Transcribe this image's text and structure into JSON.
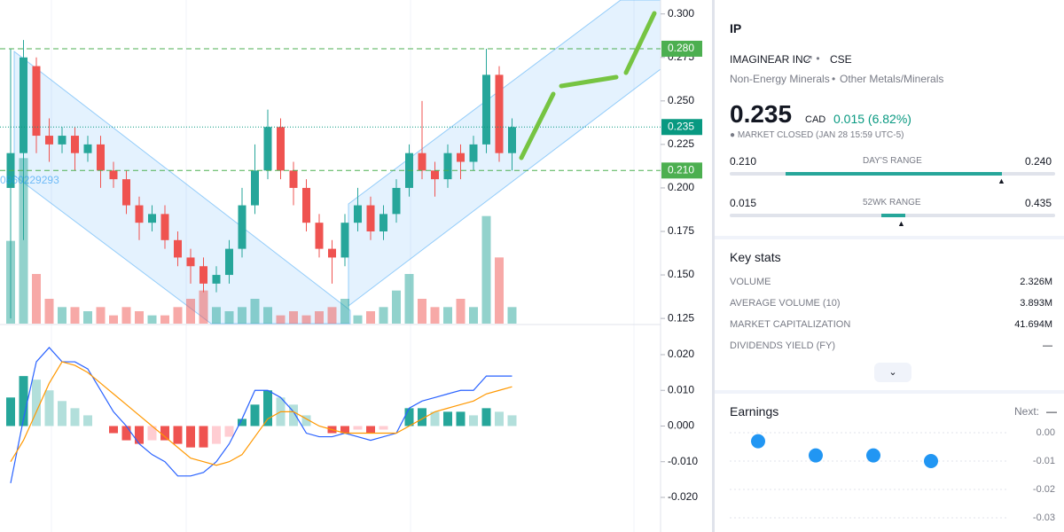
{
  "chart_data": [
    {
      "type": "candlestick",
      "open": [
        0.2,
        0.22,
        0.27,
        0.23,
        0.225,
        0.23,
        0.22,
        0.225,
        0.21,
        0.205,
        0.19,
        0.18,
        0.185,
        0.17,
        0.16,
        0.155,
        0.145,
        0.15,
        0.165,
        0.19,
        0.21,
        0.235,
        0.21,
        0.2,
        0.18,
        0.165,
        0.16,
        0.18,
        0.19,
        0.175,
        0.185,
        0.2,
        0.22,
        0.21,
        0.205,
        0.22,
        0.215,
        0.225,
        0.265,
        0.22
      ],
      "high": [
        0.28,
        0.285,
        0.275,
        0.24,
        0.235,
        0.235,
        0.23,
        0.23,
        0.215,
        0.21,
        0.195,
        0.19,
        0.19,
        0.175,
        0.165,
        0.16,
        0.155,
        0.17,
        0.2,
        0.225,
        0.245,
        0.24,
        0.215,
        0.205,
        0.185,
        0.17,
        0.185,
        0.2,
        0.195,
        0.19,
        0.205,
        0.225,
        0.25,
        0.215,
        0.225,
        0.225,
        0.23,
        0.28,
        0.27,
        0.24
      ],
      "low": [
        0.125,
        0.17,
        0.22,
        0.215,
        0.22,
        0.21,
        0.215,
        0.2,
        0.2,
        0.185,
        0.17,
        0.175,
        0.165,
        0.155,
        0.145,
        0.14,
        0.14,
        0.145,
        0.16,
        0.185,
        0.205,
        0.205,
        0.19,
        0.175,
        0.16,
        0.145,
        0.155,
        0.175,
        0.17,
        0.17,
        0.18,
        0.195,
        0.205,
        0.195,
        0.2,
        0.205,
        0.21,
        0.22,
        0.215,
        0.21
      ],
      "close": [
        0.22,
        0.275,
        0.23,
        0.225,
        0.23,
        0.22,
        0.225,
        0.21,
        0.205,
        0.19,
        0.18,
        0.185,
        0.17,
        0.16,
        0.155,
        0.145,
        0.15,
        0.165,
        0.19,
        0.21,
        0.235,
        0.21,
        0.2,
        0.18,
        0.165,
        0.16,
        0.18,
        0.19,
        0.175,
        0.185,
        0.2,
        0.22,
        0.21,
        0.205,
        0.22,
        0.215,
        0.225,
        0.265,
        0.22,
        0.235
      ],
      "volume": [
        10,
        20,
        6,
        3,
        2,
        2,
        1.5,
        2,
        1,
        2,
        1.5,
        1,
        1,
        2,
        3,
        4,
        2,
        1.5,
        2,
        3,
        2,
        1,
        1.5,
        1,
        1.5,
        2,
        3,
        1,
        1.5,
        2,
        4,
        6,
        3,
        2,
        2,
        3,
        2,
        13,
        8,
        2
      ],
      "volume_ylim": [
        0,
        30
      ],
      "up_color": "#26a69a",
      "down_color": "#ef5350",
      "ylim": [
        0.122,
        0.308
      ],
      "yticks": [
        {
          "value": 0.3,
          "label": "0.300"
        },
        0.275,
        {
          "value": 0.25,
          "label": "0.250"
        },
        0.225,
        {
          "value": 0.2,
          "label": "0.200"
        },
        0.175,
        {
          "value": 0.15,
          "label": "0.150"
        },
        0.125
      ],
      "price_lines": [
        {
          "value": 0.28,
          "label": "0.280",
          "color": "#4caf50",
          "line_style": "dashed"
        },
        {
          "value": 0.235,
          "label": "0.235",
          "color": "#089981",
          "line_style": "dotted"
        },
        {
          "value": 0.21,
          "label": "0.210",
          "color": "#4caf50",
          "line_style": "dashed"
        }
      ],
      "annotation": "0860229293"
    },
    {
      "type": "macd",
      "histogram": [
        0.008,
        0.014,
        0.013,
        0.01,
        0.007,
        0.005,
        0.003,
        0,
        -0.002,
        -0.004,
        -0.005,
        -0.004,
        -0.004,
        -0.005,
        -0.006,
        -0.006,
        -0.005,
        -0.003,
        0.002,
        0.006,
        0.01,
        0.008,
        0.006,
        0.003,
        0,
        -0.002,
        -0.002,
        -0.001,
        -0.002,
        -0.001,
        0,
        0.005,
        0.005,
        0.004,
        0.004,
        0.004,
        0.003,
        0.005,
        0.004,
        0.003
      ],
      "series": [
        {
          "color": "#2962ff",
          "values": [
            -0.016,
            0.002,
            0.018,
            0.022,
            0.018,
            0.018,
            0.016,
            0.01,
            0.004,
            0,
            -0.005,
            -0.008,
            -0.01,
            -0.014,
            -0.014,
            -0.013,
            -0.01,
            -0.005,
            0.002,
            0.01,
            0.01,
            0.008,
            0.004,
            -0.002,
            -0.003,
            -0.003,
            -0.002,
            -0.003,
            -0.004,
            -0.003,
            -0.002,
            0.005,
            0.007,
            0.008,
            0.009,
            0.01,
            0.01,
            0.014,
            0.014,
            0.014
          ]
        },
        {
          "color": "#ff9800",
          "values": [
            -0.01,
            -0.004,
            0.004,
            0.012,
            0.018,
            0.017,
            0.015,
            0.012,
            0.009,
            0.006,
            0.003,
            0,
            -0.003,
            -0.006,
            -0.009,
            -0.01,
            -0.011,
            -0.01,
            -0.008,
            -0.003,
            0.002,
            0.004,
            0.004,
            0.002,
            0,
            -0.001,
            -0.002,
            -0.002,
            -0.002,
            -0.002,
            -0.002,
            0,
            0.002,
            0.004,
            0.005,
            0.006,
            0.007,
            0.009,
            0.01,
            0.011
          ]
        }
      ],
      "ylim": [
        -0.0297,
        0.0282
      ],
      "yticks": [
        {
          "value": 0.02,
          "label": "0.020"
        },
        {
          "value": 0.01,
          "label": "0.010"
        },
        {
          "value": 0,
          "label": "0.000"
        },
        {
          "value": -0.01,
          "label": "-0.010"
        },
        {
          "value": -0.02,
          "label": "-0.020"
        }
      ]
    },
    {
      "type": "scatter",
      "title": "Earnings",
      "next_label": "Next:",
      "next_value": "—",
      "values": [
        -0.003,
        -0.008,
        -0.008,
        -0.01
      ],
      "color": "#2196f3",
      "ylim": [
        -0.035,
        0.005
      ],
      "yticks": [
        {
          "value": 0,
          "label": "0.00"
        },
        -0.01,
        -0.02,
        -0.03
      ]
    }
  ],
  "sidebar": {
    "symbol": "IP",
    "company": "IMAGINEAR INC",
    "exchange": "CSE",
    "sector": "Non-Energy Minerals",
    "industry": "Other Metals/Minerals",
    "price": "0.235",
    "currency": "CAD",
    "change": "0.015 (6.82%)",
    "status": "MARKET CLOSED",
    "status_time": "(JAN 28 15:59 UTC-5)",
    "day_range": {
      "low": "0.210",
      "label": "DAY'S RANGE",
      "high": "0.240"
    },
    "week52_range": {
      "low": "0.015",
      "label": "52WK RANGE",
      "high": "0.435"
    },
    "key_stats": {
      "title": "Key stats",
      "rows": [
        [
          "VOLUME",
          "2.326M"
        ],
        [
          "AVERAGE VOLUME (10)",
          "3.893M"
        ],
        [
          "MARKET CAPITALIZATION",
          "41.694M"
        ],
        [
          "DIVIDENDS YIELD (FY)",
          "—"
        ]
      ]
    }
  }
}
